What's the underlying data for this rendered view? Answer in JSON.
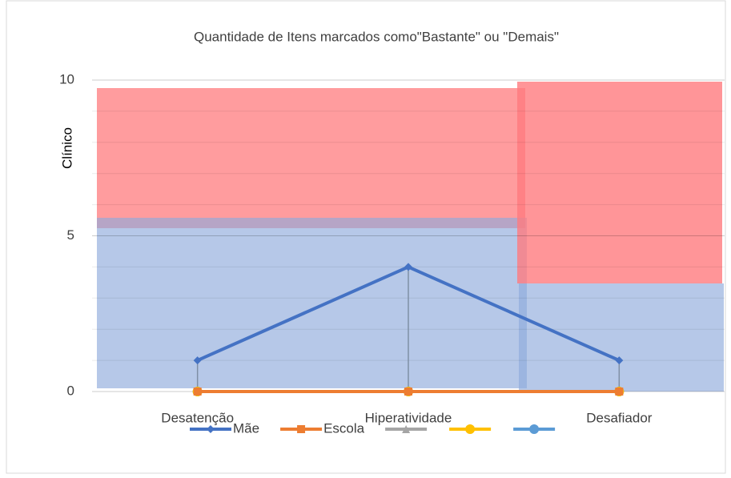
{
  "chart_data": {
    "type": "line",
    "title": "Quantidade de Itens marcados como\"Bastante\" ou \"Demais\"",
    "y_label": "Clínico",
    "categories": [
      "Desatenção",
      "Hiperatividade",
      "Desafiador"
    ],
    "series": [
      {
        "name": "Mãe",
        "color": "#4472c4",
        "marker": "diamond",
        "values": [
          1,
          4,
          1
        ]
      },
      {
        "name": "Escola",
        "color": "#ed7d31",
        "marker": "square",
        "values": [
          0,
          0,
          0
        ]
      },
      {
        "color": "#a5a5a5",
        "marker": "triangle",
        "values": [
          0,
          0,
          0
        ]
      },
      {
        "color": "#ffc000",
        "marker": "circle",
        "values": [
          0,
          0,
          0
        ]
      },
      {
        "color": "#5b9bd5",
        "marker": "circle",
        "values": [
          0,
          0,
          0
        ]
      }
    ],
    "ylim": [
      0,
      10
    ],
    "yticks": [
      0,
      5,
      10
    ],
    "y_minor_grid": [
      1,
      2,
      3,
      4,
      6,
      7,
      8,
      9
    ],
    "grid": true,
    "drop_lines": true,
    "legend": "bottom"
  }
}
